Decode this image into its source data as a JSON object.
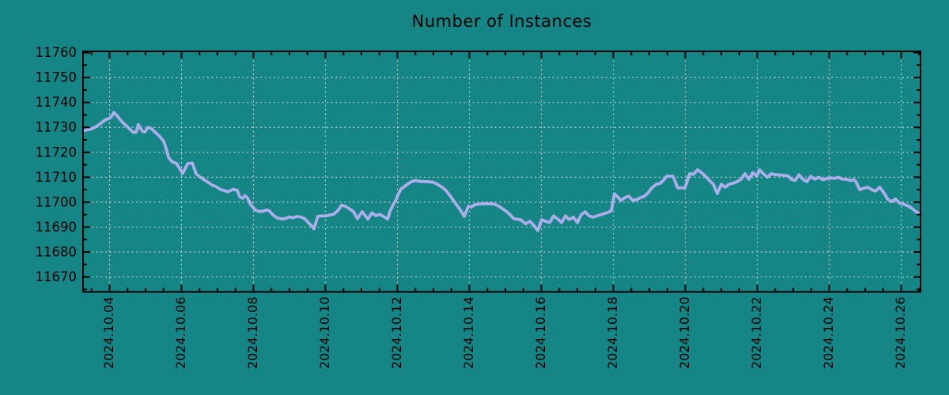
{
  "chart_data": {
    "type": "line",
    "title": "Number of Instances",
    "xlabel": "",
    "ylabel": "",
    "grid": true,
    "legend": false,
    "x_axis": {
      "tick_days": [
        4,
        6,
        8,
        10,
        12,
        14,
        16,
        18,
        20,
        22,
        24,
        26
      ],
      "tick_labels": [
        "2024.10.04",
        "2024.10.06",
        "2024.10.08",
        "2024.10.10",
        "2024.10.12",
        "2024.10.14",
        "2024.10.16",
        "2024.10.18",
        "2024.10.20",
        "2024.10.22",
        "2024.10.24",
        "2024.10.26"
      ],
      "minor_tick_step_days": 0.5,
      "range_days": [
        3.264,
        26.538
      ]
    },
    "y_axis": {
      "ticks": [
        11670,
        11680,
        11690,
        11700,
        11710,
        11720,
        11730,
        11740,
        11750,
        11760
      ],
      "minor_tick_step": 5,
      "range": [
        11664,
        11760.5
      ]
    },
    "colors": {
      "background": "#158586",
      "line": "#acaeec",
      "grid": "#c4cccc",
      "axis": "#000000",
      "text": "#000000"
    },
    "series": [
      {
        "name": "instances",
        "points": [
          [
            3.26,
            11728.6
          ],
          [
            3.37,
            11729
          ],
          [
            3.48,
            11729.3
          ],
          [
            3.59,
            11730
          ],
          [
            3.7,
            11731
          ],
          [
            3.81,
            11732.2
          ],
          [
            3.9,
            11733.2
          ],
          [
            3.98,
            11733.5
          ],
          [
            4.05,
            11734.3
          ],
          [
            4.12,
            11736
          ],
          [
            4.21,
            11734.7
          ],
          [
            4.32,
            11732.7
          ],
          [
            4.43,
            11731.1
          ],
          [
            4.54,
            11729.6
          ],
          [
            4.65,
            11728.1
          ],
          [
            4.74,
            11728
          ],
          [
            4.8,
            11731.2
          ],
          [
            4.91,
            11728.5
          ],
          [
            4.98,
            11728.1
          ],
          [
            5.07,
            11730
          ],
          [
            5.15,
            11729.7
          ],
          [
            5.24,
            11728.4
          ],
          [
            5.35,
            11727
          ],
          [
            5.42,
            11726
          ],
          [
            5.51,
            11724.3
          ],
          [
            5.57,
            11721.7
          ],
          [
            5.64,
            11718
          ],
          [
            5.73,
            11716.3
          ],
          [
            5.8,
            11715.8
          ],
          [
            5.86,
            11715.6
          ],
          [
            5.97,
            11713
          ],
          [
            6.03,
            11711.5
          ],
          [
            6.17,
            11715.4
          ],
          [
            6.3,
            11715.7
          ],
          [
            6.41,
            11711.3
          ],
          [
            6.52,
            11710
          ],
          [
            6.63,
            11709
          ],
          [
            6.74,
            11708
          ],
          [
            6.85,
            11706.8
          ],
          [
            6.96,
            11706.3
          ],
          [
            7.07,
            11705.2
          ],
          [
            7.18,
            11704.7
          ],
          [
            7.29,
            11704.2
          ],
          [
            7.44,
            11705.2
          ],
          [
            7.55,
            11704.7
          ],
          [
            7.62,
            11702.1
          ],
          [
            7.7,
            11701.6
          ],
          [
            7.77,
            11702.6
          ],
          [
            7.84,
            11701.6
          ],
          [
            7.92,
            11699
          ],
          [
            7.99,
            11698
          ],
          [
            8.05,
            11696.8
          ],
          [
            8.16,
            11696.3
          ],
          [
            8.27,
            11696.4
          ],
          [
            8.38,
            11696.9
          ],
          [
            8.44,
            11696.5
          ],
          [
            8.55,
            11694.8
          ],
          [
            8.66,
            11693.7
          ],
          [
            8.77,
            11693.3
          ],
          [
            8.88,
            11693.4
          ],
          [
            8.99,
            11694
          ],
          [
            9.1,
            11693.8
          ],
          [
            9.21,
            11694.3
          ],
          [
            9.32,
            11694
          ],
          [
            9.43,
            11693.3
          ],
          [
            9.54,
            11691.6
          ],
          [
            9.65,
            11690
          ],
          [
            9.68,
            11689.3
          ],
          [
            9.79,
            11694.3
          ],
          [
            9.9,
            11694.5
          ],
          [
            10.01,
            11694.5
          ],
          [
            10.12,
            11694.8
          ],
          [
            10.23,
            11695.2
          ],
          [
            10.34,
            11696.5
          ],
          [
            10.45,
            11698.8
          ],
          [
            10.56,
            11698.3
          ],
          [
            10.63,
            11697.7
          ],
          [
            10.71,
            11696.9
          ],
          [
            10.78,
            11696.2
          ],
          [
            10.89,
            11693.3
          ],
          [
            11.02,
            11696.2
          ],
          [
            11.18,
            11693.2
          ],
          [
            11.29,
            11695.7
          ],
          [
            11.4,
            11694.6
          ],
          [
            11.51,
            11695.1
          ],
          [
            11.62,
            11694.2
          ],
          [
            11.73,
            11693.2
          ],
          [
            11.79,
            11696.2
          ],
          [
            11.88,
            11698.9
          ],
          [
            11.95,
            11700.5
          ],
          [
            12.02,
            11703.1
          ],
          [
            12.1,
            11705.3
          ],
          [
            12.17,
            11706
          ],
          [
            12.28,
            11707.2
          ],
          [
            12.39,
            11708.2
          ],
          [
            12.5,
            11708.7
          ],
          [
            12.65,
            11708.3
          ],
          [
            12.83,
            11708.2
          ],
          [
            13.0,
            11708
          ],
          [
            13.11,
            11707.2
          ],
          [
            13.22,
            11706.2
          ],
          [
            13.33,
            11705
          ],
          [
            13.49,
            11702.1
          ],
          [
            13.64,
            11699
          ],
          [
            13.75,
            11696.9
          ],
          [
            13.86,
            11694.3
          ],
          [
            13.97,
            11698.4
          ],
          [
            14.06,
            11698
          ],
          [
            14.14,
            11699
          ],
          [
            14.3,
            11699.3
          ],
          [
            14.5,
            11699.4
          ],
          [
            14.7,
            11699.2
          ],
          [
            14.8,
            11698.5
          ],
          [
            14.91,
            11697.5
          ],
          [
            15.02,
            11696.4
          ],
          [
            15.13,
            11695
          ],
          [
            15.24,
            11693.3
          ],
          [
            15.42,
            11693
          ],
          [
            15.57,
            11691.3
          ],
          [
            15.68,
            11692.3
          ],
          [
            15.79,
            11690.7
          ],
          [
            15.9,
            11688.6
          ],
          [
            16.01,
            11693
          ],
          [
            16.12,
            11692.3
          ],
          [
            16.23,
            11691.8
          ],
          [
            16.34,
            11694.5
          ],
          [
            16.45,
            11693.3
          ],
          [
            16.56,
            11691.8
          ],
          [
            16.67,
            11694.5
          ],
          [
            16.78,
            11693
          ],
          [
            16.89,
            11694
          ],
          [
            17.0,
            11691.8
          ],
          [
            17.11,
            11695
          ],
          [
            17.22,
            11696.1
          ],
          [
            17.33,
            11694.5
          ],
          [
            17.44,
            11694
          ],
          [
            17.55,
            11694.5
          ],
          [
            17.66,
            11695
          ],
          [
            17.77,
            11695.5
          ],
          [
            17.88,
            11696
          ],
          [
            17.95,
            11696.7
          ],
          [
            18.03,
            11703.4
          ],
          [
            18.1,
            11702.4
          ],
          [
            18.21,
            11700.7
          ],
          [
            18.32,
            11701.8
          ],
          [
            18.43,
            11702.4
          ],
          [
            18.54,
            11700.7
          ],
          [
            18.65,
            11701
          ],
          [
            18.76,
            11701.8
          ],
          [
            18.87,
            11702.4
          ],
          [
            18.98,
            11704
          ],
          [
            19.09,
            11706
          ],
          [
            19.2,
            11707.2
          ],
          [
            19.31,
            11707.6
          ],
          [
            19.42,
            11709.2
          ],
          [
            19.48,
            11710.4
          ],
          [
            19.66,
            11710.4
          ],
          [
            19.79,
            11705.7
          ],
          [
            19.99,
            11705.7
          ],
          [
            20.12,
            11711.4
          ],
          [
            20.23,
            11711.2
          ],
          [
            20.34,
            11713
          ],
          [
            20.45,
            11711.9
          ],
          [
            20.56,
            11710.4
          ],
          [
            20.67,
            11708.7
          ],
          [
            20.78,
            11707.2
          ],
          [
            20.89,
            11703.4
          ],
          [
            21.0,
            11707.2
          ],
          [
            21.11,
            11706
          ],
          [
            21.22,
            11707.2
          ],
          [
            21.33,
            11707.6
          ],
          [
            21.44,
            11708.2
          ],
          [
            21.55,
            11709.2
          ],
          [
            21.66,
            11711.4
          ],
          [
            21.77,
            11709.2
          ],
          [
            21.88,
            11711.9
          ],
          [
            21.99,
            11710.4
          ],
          [
            22.06,
            11713
          ],
          [
            22.17,
            11711.4
          ],
          [
            22.28,
            11710
          ],
          [
            22.39,
            11711.4
          ],
          [
            22.5,
            11711
          ],
          [
            22.72,
            11710.8
          ],
          [
            22.87,
            11710.5
          ],
          [
            22.94,
            11709.2
          ],
          [
            23.05,
            11708.7
          ],
          [
            23.16,
            11711
          ],
          [
            23.27,
            11709.2
          ],
          [
            23.38,
            11708.2
          ],
          [
            23.49,
            11710.4
          ],
          [
            23.6,
            11709.2
          ],
          [
            23.71,
            11710
          ],
          [
            23.82,
            11709
          ],
          [
            24.0,
            11709.8
          ],
          [
            24.15,
            11709.5
          ],
          [
            24.26,
            11710
          ],
          [
            24.37,
            11709.2
          ],
          [
            24.48,
            11709.2
          ],
          [
            24.59,
            11708.7
          ],
          [
            24.7,
            11709
          ],
          [
            24.74,
            11708.2
          ],
          [
            24.85,
            11705
          ],
          [
            24.96,
            11705.6
          ],
          [
            25.07,
            11706
          ],
          [
            25.18,
            11705
          ],
          [
            25.29,
            11704.4
          ],
          [
            25.4,
            11706
          ],
          [
            25.51,
            11704
          ],
          [
            25.62,
            11701.3
          ],
          [
            25.73,
            11700.2
          ],
          [
            25.84,
            11701.3
          ],
          [
            25.95,
            11699.7
          ],
          [
            26.06,
            11699.2
          ],
          [
            26.17,
            11698.6
          ],
          [
            26.28,
            11697.7
          ],
          [
            26.39,
            11696.4
          ],
          [
            26.5,
            11695.5
          ],
          [
            26.54,
            11695.3
          ]
        ]
      }
    ]
  }
}
